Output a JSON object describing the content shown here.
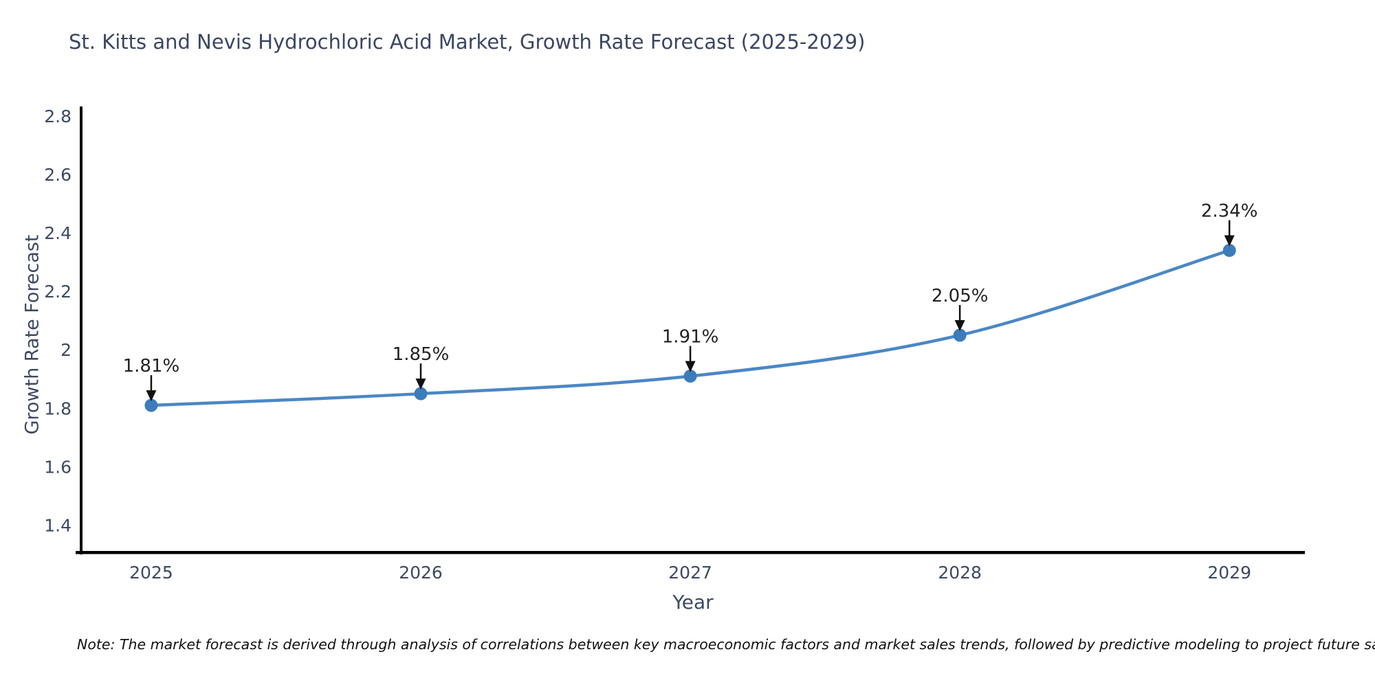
{
  "note": "Note: The market forecast is derived through analysis of correlations between key macroeconomic factors and market sales trends, followed by predictive modeling to project future sales",
  "chart_data": {
    "type": "line",
    "title": "St. Kitts and Nevis Hydrochloric Acid Market, Growth Rate Forecast (2025-2029)",
    "xlabel": "Year",
    "ylabel": "Growth Rate Forecast",
    "x": [
      2025,
      2026,
      2027,
      2028,
      2029
    ],
    "series": [
      {
        "name": "Growth Rate Forecast",
        "values": [
          1.81,
          1.85,
          1.91,
          2.05,
          2.34
        ]
      }
    ],
    "point_labels": [
      "1.81%",
      "1.85%",
      "1.91%",
      "2.05%",
      "2.34%"
    ],
    "xtick_labels": [
      "2025",
      "2026",
      "2027",
      "2028",
      "2029"
    ],
    "yticks": [
      1.4,
      1.6,
      1.8,
      2,
      2.2,
      2.4,
      2.6,
      2.8
    ],
    "ytick_labels": [
      "1.4",
      "1.6",
      "1.8",
      "2",
      "2.2",
      "2.4",
      "2.6",
      "2.8"
    ],
    "xlim": [
      2024.74,
      2029.28
    ],
    "ylim": [
      1.305,
      2.83
    ],
    "grid": false,
    "legend": false,
    "colors": {
      "line": "#4b87c5",
      "marker": "#3c7cba",
      "annotation_text": "#222222",
      "annotation_arrow": "#111111",
      "axis_text": "#3c4961",
      "title": "#3a4663",
      "spine": "#000000",
      "background": "#ffffff"
    }
  }
}
